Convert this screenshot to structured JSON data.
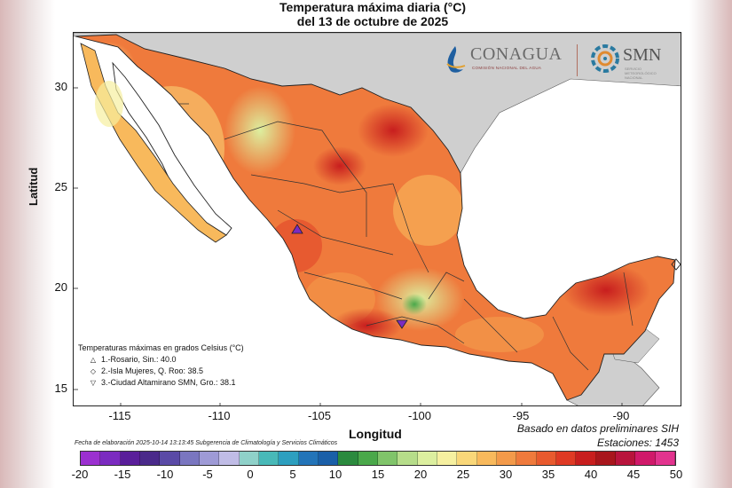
{
  "title": {
    "line1": "Temperatura máxima diaria (°C)",
    "line2": "del 13 de octubre de 2025"
  },
  "logos": {
    "conagua": "CONAGUA",
    "conagua_sub": "COMISIÓN NACIONAL DEL AGUA",
    "smn": "SMN",
    "smn_sub": "SERVICIO METEOROLÓGICO NACIONAL"
  },
  "axes": {
    "ylabel": "Latitud",
    "xlabel": "Longitud",
    "yticks": [
      "30",
      "25",
      "20",
      "15"
    ],
    "xticks": [
      "-115",
      "-110",
      "-105",
      "-100",
      "-95",
      "-90"
    ]
  },
  "legend": {
    "title": "Temperaturas máximas en grados Celsius (°C)",
    "items": [
      {
        "symbol": "△",
        "label": "1.-Rosario, Sin.: 40.0"
      },
      {
        "symbol": "◇",
        "label": "2.-Isla Mujeres, Q. Roo: 38.5"
      },
      {
        "symbol": "▽",
        "label": "3.-Ciudad Altamirano SMN, Gro.: 38.1"
      }
    ]
  },
  "notes": {
    "prelim": "Basado en datos preliminares SIH",
    "stations": "Estaciones:  1453",
    "credit": "Fecha de elaboración 2025-10-14 13:13:45 Subgerencia de Climatología y Servicios Climáticos"
  },
  "colorbar": {
    "ticks": [
      "-20",
      "-15",
      "-10",
      "-5",
      "0",
      "5",
      "10",
      "15",
      "20",
      "25",
      "30",
      "35",
      "40",
      "45",
      "50"
    ],
    "colors": [
      "#9b30d0",
      "#7b2bc0",
      "#5a1e9a",
      "#4a2a8a",
      "#5a4aa6",
      "#7a76c0",
      "#9e9ad6",
      "#c0bce6",
      "#8fd1c9",
      "#48b9b8",
      "#2d9fbf",
      "#2374b8",
      "#1a5fa8",
      "#2b8a3e",
      "#4aa84a",
      "#80c46a",
      "#b6dd8a",
      "#dcef9f",
      "#f6f0a0",
      "#f9d779",
      "#f8b95c",
      "#f39a4a",
      "#ef7a3c",
      "#e85a2e",
      "#df3a24",
      "#c81e1e",
      "#a8161c",
      "#b8143c",
      "#d0196a",
      "#e2338e"
    ]
  }
}
